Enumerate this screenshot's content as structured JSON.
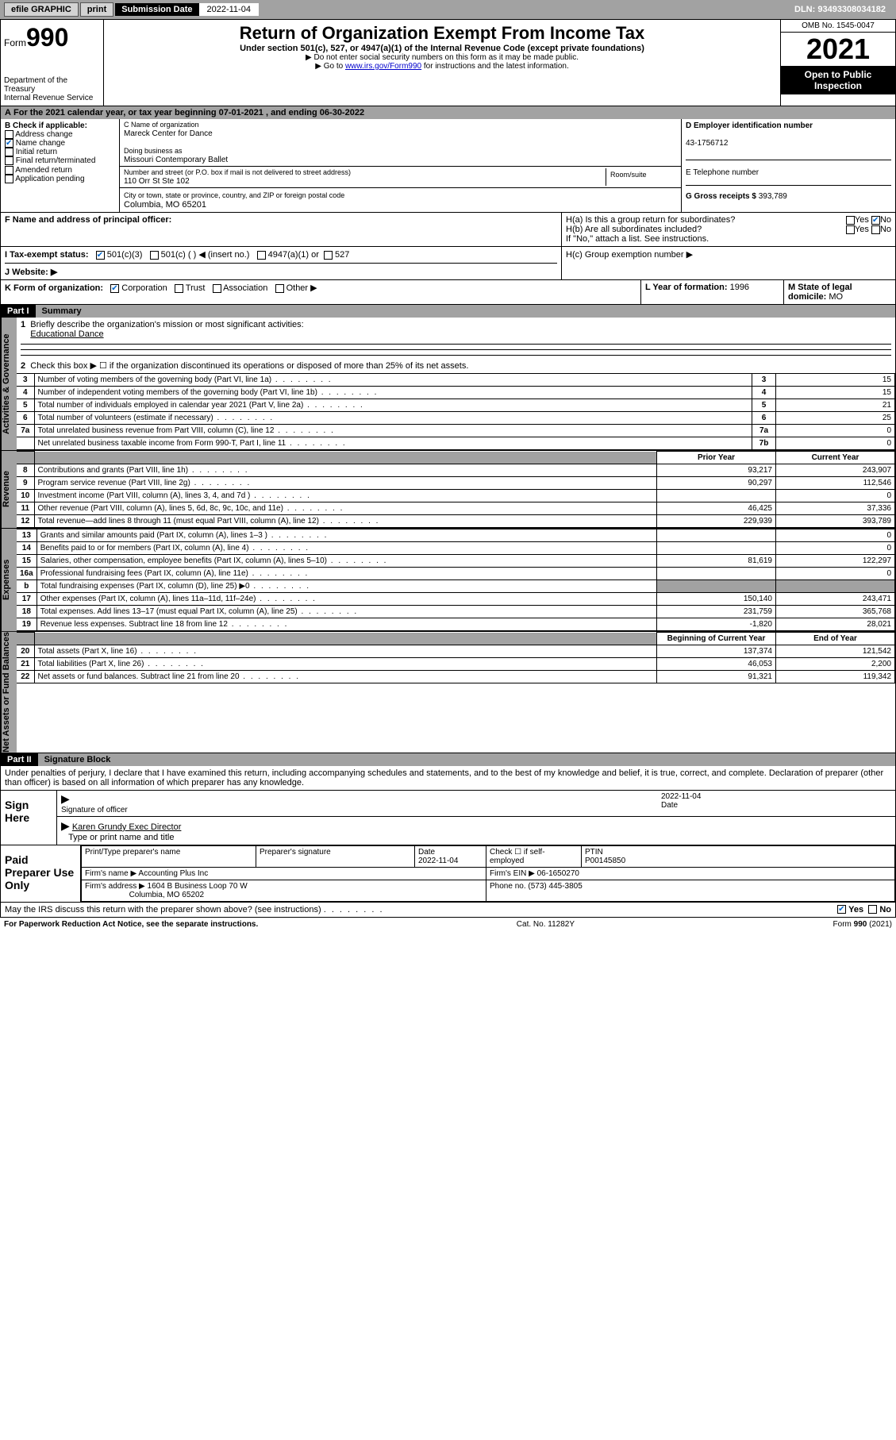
{
  "topbar": {
    "efile": "efile GRAPHIC",
    "print": "print",
    "subLabel": "Submission Date",
    "subDate": "2022-11-04",
    "dln": "DLN: 93493308034182"
  },
  "header": {
    "form": "Form",
    "num": "990",
    "dept": "Department of the Treasury",
    "irs": "Internal Revenue Service",
    "title": "Return of Organization Exempt From Income Tax",
    "sub1": "Under section 501(c), 527, or 4947(a)(1) of the Internal Revenue Code (except private foundations)",
    "sub2": "▶ Do not enter social security numbers on this form as it may be made public.",
    "sub3a": "▶ Go to ",
    "sub3link": "www.irs.gov/Form990",
    "sub3b": " for instructions and the latest information.",
    "omb": "OMB No. 1545-0047",
    "year": "2021",
    "open": "Open to Public Inspection"
  },
  "a": {
    "text": "For the 2021 calendar year, or tax year beginning ",
    "begin": "07-01-2021",
    "mid": " , and ending ",
    "end": "06-30-2022"
  },
  "b": {
    "title": "B Check if applicable:",
    "opts": [
      "Address change",
      "Name change",
      "Initial return",
      "Final return/terminated",
      "Amended return",
      "Application pending"
    ],
    "checked": [
      false,
      true,
      false,
      false,
      false,
      false
    ]
  },
  "c": {
    "nameLabel": "C Name of organization",
    "name": "Mareck Center for Dance",
    "dbaLabel": "Doing business as",
    "dba": "Missouri Contemporary Ballet",
    "streetLabel": "Number and street (or P.O. box if mail is not delivered to street address)",
    "roomLabel": "Room/suite",
    "street": "110 Orr St Ste 102",
    "cityLabel": "City or town, state or province, country, and ZIP or foreign postal code",
    "city": "Columbia, MO  65201"
  },
  "d": {
    "label": "D Employer identification number",
    "val": "43-1756712"
  },
  "e": {
    "label": "E Telephone number",
    "val": ""
  },
  "g": {
    "label": "G Gross receipts $",
    "val": "393,789"
  },
  "f": {
    "label": "F Name and address of principal officer:"
  },
  "h": {
    "a": "H(a)  Is this a group return for subordinates?",
    "b": "H(b)  Are all subordinates included?",
    "bnote": "If \"No,\" attach a list. See instructions.",
    "c": "H(c)  Group exemption number ▶",
    "yes": "Yes",
    "no": "No"
  },
  "i": {
    "label": "I   Tax-exempt status:",
    "o1": "501(c)(3)",
    "o2": "501(c) (  ) ◀ (insert no.)",
    "o3": "4947(a)(1) or",
    "o4": "527"
  },
  "j": {
    "label": "J   Website: ▶"
  },
  "k": {
    "label": "K Form of organization:",
    "o1": "Corporation",
    "o2": "Trust",
    "o3": "Association",
    "o4": "Other ▶"
  },
  "l": {
    "label": "L Year of formation:",
    "val": "1996"
  },
  "m": {
    "label": "M State of legal domicile:",
    "val": "MO"
  },
  "part1": {
    "num": "Part I",
    "title": "Summary"
  },
  "gov": {
    "side": "Activities & Governance",
    "l1": "Briefly describe the organization's mission or most significant activities:",
    "l1v": "Educational Dance",
    "l2": "Check this box ▶ ☐  if the organization discontinued its operations or disposed of more than 25% of its net assets.",
    "rows": [
      {
        "n": "3",
        "t": "Number of voting members of the governing body (Part VI, line 1a)",
        "b": "3",
        "v": "15"
      },
      {
        "n": "4",
        "t": "Number of independent voting members of the governing body (Part VI, line 1b)",
        "b": "4",
        "v": "15"
      },
      {
        "n": "5",
        "t": "Total number of individuals employed in calendar year 2021 (Part V, line 2a)",
        "b": "5",
        "v": "21"
      },
      {
        "n": "6",
        "t": "Total number of volunteers (estimate if necessary)",
        "b": "6",
        "v": "25"
      },
      {
        "n": "7a",
        "t": "Total unrelated business revenue from Part VIII, column (C), line 12",
        "b": "7a",
        "v": "0"
      },
      {
        "n": "",
        "t": "Net unrelated business taxable income from Form 990-T, Part I, line 11",
        "b": "7b",
        "v": "0"
      }
    ]
  },
  "rev": {
    "side": "Revenue",
    "hdr1": "Prior Year",
    "hdr2": "Current Year",
    "rows": [
      {
        "n": "8",
        "t": "Contributions and grants (Part VIII, line 1h)",
        "p": "93,217",
        "c": "243,907"
      },
      {
        "n": "9",
        "t": "Program service revenue (Part VIII, line 2g)",
        "p": "90,297",
        "c": "112,546"
      },
      {
        "n": "10",
        "t": "Investment income (Part VIII, column (A), lines 3, 4, and 7d )",
        "p": "",
        "c": "0"
      },
      {
        "n": "11",
        "t": "Other revenue (Part VIII, column (A), lines 5, 6d, 8c, 9c, 10c, and 11e)",
        "p": "46,425",
        "c": "37,336"
      },
      {
        "n": "12",
        "t": "Total revenue—add lines 8 through 11 (must equal Part VIII, column (A), line 12)",
        "p": "229,939",
        "c": "393,789"
      }
    ]
  },
  "exp": {
    "side": "Expenses",
    "rows": [
      {
        "n": "13",
        "t": "Grants and similar amounts paid (Part IX, column (A), lines 1–3 )",
        "p": "",
        "c": "0"
      },
      {
        "n": "14",
        "t": "Benefits paid to or for members (Part IX, column (A), line 4)",
        "p": "",
        "c": "0"
      },
      {
        "n": "15",
        "t": "Salaries, other compensation, employee benefits (Part IX, column (A), lines 5–10)",
        "p": "81,619",
        "c": "122,297"
      },
      {
        "n": "16a",
        "t": "Professional fundraising fees (Part IX, column (A), line 11e)",
        "p": "",
        "c": "0"
      },
      {
        "n": "b",
        "t": "Total fundraising expenses (Part IX, column (D), line 25) ▶0",
        "p": "grey",
        "c": "grey"
      },
      {
        "n": "17",
        "t": "Other expenses (Part IX, column (A), lines 11a–11d, 11f–24e)",
        "p": "150,140",
        "c": "243,471"
      },
      {
        "n": "18",
        "t": "Total expenses. Add lines 13–17 (must equal Part IX, column (A), line 25)",
        "p": "231,759",
        "c": "365,768"
      },
      {
        "n": "19",
        "t": "Revenue less expenses. Subtract line 18 from line 12",
        "p": "-1,820",
        "c": "28,021"
      }
    ]
  },
  "net": {
    "side": "Net Assets or Fund Balances",
    "hdr1": "Beginning of Current Year",
    "hdr2": "End of Year",
    "rows": [
      {
        "n": "20",
        "t": "Total assets (Part X, line 16)",
        "p": "137,374",
        "c": "121,542"
      },
      {
        "n": "21",
        "t": "Total liabilities (Part X, line 26)",
        "p": "46,053",
        "c": "2,200"
      },
      {
        "n": "22",
        "t": "Net assets or fund balances. Subtract line 21 from line 20",
        "p": "91,321",
        "c": "119,342"
      }
    ]
  },
  "part2": {
    "num": "Part II",
    "title": "Signature Block"
  },
  "sig": {
    "decl": "Under penalties of perjury, I declare that I have examined this return, including accompanying schedules and statements, and to the best of my knowledge and belief, it is true, correct, and complete. Declaration of preparer (other than officer) is based on all information of which preparer has any knowledge.",
    "signHere": "Sign Here",
    "sigOff": "Signature of officer",
    "date": "Date",
    "dateVal": "2022-11-04",
    "name": "Karen Grundy  Exec Director",
    "nameLabel": "Type or print name and title",
    "paid": "Paid Preparer Use Only",
    "prepName": "Print/Type preparer's name",
    "prepSig": "Preparer's signature",
    "prepDate": "Date",
    "prepDateVal": "2022-11-04",
    "selfEmp": "Check ☐ if self-employed",
    "ptin": "PTIN",
    "ptinVal": "P00145850",
    "firmName": "Firm's name    ▶",
    "firmNameVal": "Accounting Plus Inc",
    "firmEin": "Firm's EIN ▶",
    "firmEinVal": "06-1650270",
    "firmAddr": "Firm's address ▶",
    "firmAddrVal": "1604 B Business Loop 70 W",
    "firmCity": "Columbia, MO  65202",
    "phone": "Phone no.",
    "phoneVal": "(573) 445-3805",
    "may": "May the IRS discuss this return with the preparer shown above? (see instructions)",
    "yes": "Yes",
    "no": "No"
  },
  "footer": {
    "left": "For Paperwork Reduction Act Notice, see the separate instructions.",
    "mid": "Cat. No. 11282Y",
    "right": "Form 990 (2021)"
  }
}
